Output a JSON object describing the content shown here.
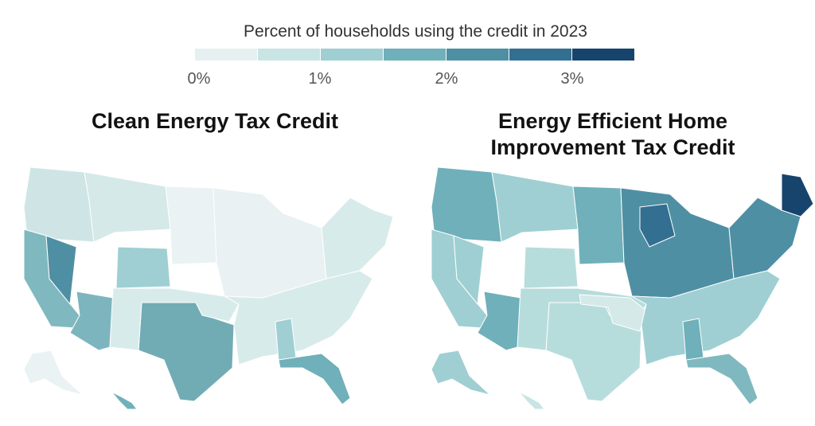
{
  "legend": {
    "title": "Percent of households using the credit in 2023",
    "ticks": [
      "0%",
      "1%",
      "2%",
      "3%"
    ],
    "bins": [
      "#e6f0f1",
      "#c9e4e4",
      "#9fcfd2",
      "#6fb0ba",
      "#4f8fa3",
      "#336f91",
      "#17446c"
    ]
  },
  "maps": {
    "left": {
      "title": "Clean Energy Tax Credit",
      "regions": [
        {
          "name": "west-north",
          "fill": "#cfe5e5"
        },
        {
          "name": "mountain-north",
          "fill": "#d4e9e8"
        },
        {
          "name": "plains-north",
          "fill": "#eaf2f3"
        },
        {
          "name": "midwest",
          "fill": "#e9f1f2"
        },
        {
          "name": "northeast",
          "fill": "#d7ebea"
        },
        {
          "name": "california",
          "fill": "#7fb9bf"
        },
        {
          "name": "nevada",
          "fill": "#4f8fa3"
        },
        {
          "name": "arizona",
          "fill": "#7db5be"
        },
        {
          "name": "colorado",
          "fill": "#9fcfd2"
        },
        {
          "name": "texas",
          "fill": "#71acb5"
        },
        {
          "name": "southwest-mid",
          "fill": "#d7ebea"
        },
        {
          "name": "south-east",
          "fill": "#d7ebea"
        },
        {
          "name": "alabama",
          "fill": "#9fcfd2"
        },
        {
          "name": "florida",
          "fill": "#6fb0ba"
        },
        {
          "name": "alaska",
          "fill": "#eaf2f3"
        },
        {
          "name": "hawaii",
          "fill": "#6fb0ba"
        }
      ]
    },
    "right": {
      "title": "Energy Efficient Home Improvement Tax Credit",
      "regions": [
        {
          "name": "west-north",
          "fill": "#6fb0ba"
        },
        {
          "name": "mountain-north",
          "fill": "#9fcfd2"
        },
        {
          "name": "plains-north",
          "fill": "#6fb0ba"
        },
        {
          "name": "midwest",
          "fill": "#4f8fa3"
        },
        {
          "name": "wisconsin",
          "fill": "#336f91"
        },
        {
          "name": "northeast",
          "fill": "#4f8fa3"
        },
        {
          "name": "maine",
          "fill": "#17446c"
        },
        {
          "name": "california",
          "fill": "#9fcfd2"
        },
        {
          "name": "nevada",
          "fill": "#9fcfd2"
        },
        {
          "name": "arizona",
          "fill": "#6fb0ba"
        },
        {
          "name": "colorado",
          "fill": "#b7dcdc"
        },
        {
          "name": "texas",
          "fill": "#b7dcdc"
        },
        {
          "name": "southwest-mid",
          "fill": "#b7dcdc"
        },
        {
          "name": "oklahoma",
          "fill": "#d4e9e8"
        },
        {
          "name": "south-east",
          "fill": "#9fcfd2"
        },
        {
          "name": "alabama",
          "fill": "#6fb0ba"
        },
        {
          "name": "florida",
          "fill": "#7fb9bf"
        },
        {
          "name": "alaska",
          "fill": "#9fcfd2"
        },
        {
          "name": "hawaii",
          "fill": "#c9e4e4"
        }
      ]
    }
  }
}
